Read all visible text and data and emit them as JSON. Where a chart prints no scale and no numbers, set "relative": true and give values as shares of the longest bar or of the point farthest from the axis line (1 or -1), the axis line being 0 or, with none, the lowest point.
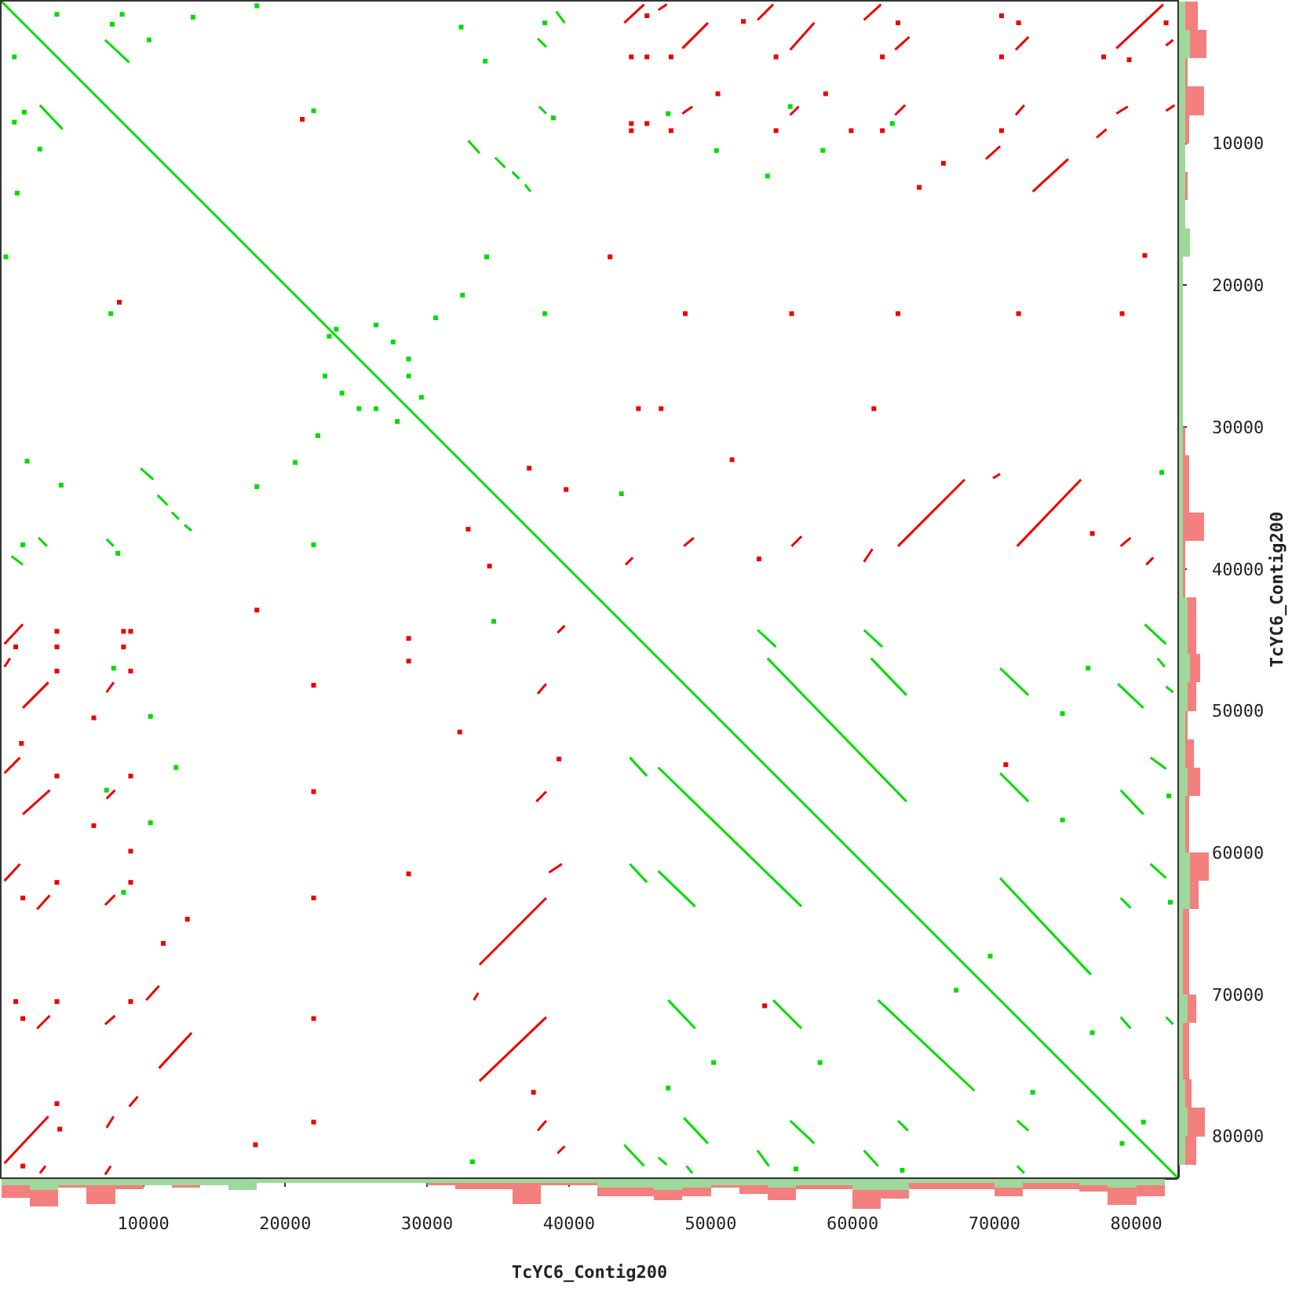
{
  "chart_data": [
    {
      "type": "line",
      "xlim": [
        0,
        82900
      ],
      "ylim": [
        82900,
        0
      ],
      "tick_labels": false,
      "xticks": [
        10000,
        20000,
        30000,
        40000,
        50000,
        60000,
        70000,
        80000
      ],
      "yticks": [
        10000,
        20000,
        30000,
        40000,
        50000,
        60000,
        70000,
        80000
      ],
      "series": [
        {
          "color": "#00dd00",
          "x": [
            0,
            82900
          ],
          "values": [
            0,
            82900
          ]
        },
        {
          "color": "#00dd00",
          "x": [
            700,
            1500,
            null,
            2600,
            3200,
            null,
            7300,
            9000,
            null,
            9800,
            10700,
            null,
            11000,
            11700,
            null,
            12000,
            12500,
            null,
            12900,
            13400,
            null,
            32900,
            33700,
            null,
            34800,
            35500,
            null,
            36000,
            36500,
            null,
            36900,
            37300,
            null,
            37800,
            38400,
            null,
            44300,
            45500,
            null,
            46300,
            56400,
            null,
            60800,
            62100,
            null,
            63200,
            63900,
            null,
            70400,
            72400,
            null,
            78700,
            80500,
            null,
            80600,
            82100
          ],
          "values": [
            39100,
            39700,
            null,
            37800,
            38400,
            null,
            2700,
            4300,
            null,
            32900,
            33700,
            null,
            34800,
            35500,
            null,
            36000,
            36500,
            null,
            36900,
            37300,
            null,
            9800,
            10700,
            null,
            11000,
            11700,
            null,
            12000,
            12500,
            null,
            12900,
            13400,
            null,
            2600,
            3200,
            null,
            53300,
            54600,
            null,
            54000,
            63800,
            null,
            44300,
            45500,
            null,
            78900,
            79600,
            null,
            47000,
            48900,
            null,
            48100,
            49800,
            null,
            43900,
            45300
          ]
        },
        {
          "color": "#00dd00",
          "x": [
            2700,
            4300,
            null,
            7400,
            7900,
            null,
            37900,
            38400,
            null,
            39100,
            39700,
            null,
            43900,
            45300,
            null,
            46300,
            48900,
            null,
            53300,
            54600,
            null,
            55600,
            57300,
            null,
            60800,
            61800,
            null,
            70400,
            72400,
            null,
            78900,
            80500,
            null,
            81000,
            82100
          ],
          "values": [
            7300,
            9000,
            null,
            37900,
            38400,
            null,
            7400,
            7900,
            null,
            700,
            1500,
            null,
            80600,
            82100,
            null,
            61300,
            63800,
            null,
            44300,
            45500,
            null,
            78900,
            80500,
            null,
            81000,
            82100,
            null,
            54400,
            56400,
            null,
            55600,
            57300,
            null,
            53300,
            54100
          ]
        },
        {
          "color": "#00dd00",
          "x": [
            44300,
            45500,
            null,
            46300,
            46900,
            null,
            47000,
            48900,
            null,
            53300,
            54100,
            null,
            54400,
            56400,
            null,
            61300,
            63800,
            null,
            70400,
            76800,
            null,
            78900,
            79600,
            null,
            81000,
            82100
          ],
          "values": [
            60800,
            62100,
            null,
            81500,
            82000,
            null,
            70400,
            72400,
            null,
            81000,
            82100,
            null,
            70400,
            72400,
            null,
            46300,
            48900,
            null,
            61800,
            68600,
            null,
            63200,
            63900,
            null,
            60800,
            61800
          ]
        },
        {
          "color": "#00dd00",
          "x": [
            48100,
            49800,
            null,
            54000,
            63800,
            null,
            71600,
            72400,
            null,
            78900,
            79600,
            null,
            81500,
            82000,
            null,
            82100,
            82600
          ],
          "values": [
            78700,
            80500,
            null,
            46300,
            56400,
            null,
            78900,
            79600,
            null,
            71600,
            72400,
            null,
            46300,
            46900,
            null,
            48300,
            48700
          ]
        },
        {
          "color": "#00dd00",
          "x": [
            48300,
            48700,
            null,
            61800,
            68600,
            null,
            71600,
            72100,
            null,
            82100,
            82600
          ],
          "values": [
            82100,
            82600,
            null,
            70400,
            76800,
            null,
            82100,
            82600,
            null,
            71600,
            72100
          ]
        },
        {
          "type": "scatter",
          "marker": "square",
          "color": "#00dd00",
          "x": [
            3900,
            900,
            8500,
            900,
            13500,
            1100,
            18000,
            300,
            10400,
            2700,
            38300,
            1500,
            32400,
            1800,
            34100,
            4200,
            38900,
            8200,
            22000,
            7700,
            34200,
            18000,
            38300,
            22000,
            23600,
            23100,
            26400,
            22800,
            27600,
            24000,
            30600,
            22300,
            28700,
            25200,
            29600,
            27900,
            47000,
            7900,
            55600,
            7400,
            62800,
            8600,
            50400,
            10500,
            57900,
            10500,
            54000,
            12300,
            43700,
            34700,
            81800,
            33200,
            74800,
            50200,
            74800,
            57700,
            69700,
            67300,
            80500,
            79000,
            7800,
            1600,
            28700,
            26400,
            32500,
            20700,
            76600,
            47000,
            76900,
            72700,
            82400,
            63500,
            82300,
            56000
          ],
          "values": [
            900,
            3900,
            900,
            8500,
            1100,
            13500,
            300,
            18000,
            2700,
            10400,
            1500,
            38300,
            1800,
            32400,
            4200,
            34100,
            8200,
            38900,
            7700,
            22000,
            18000,
            34200,
            22000,
            38300,
            23100,
            23600,
            22800,
            26400,
            24000,
            27600,
            22300,
            30600,
            25200,
            28700,
            27900,
            29600,
            7900,
            47000,
            7400,
            55600,
            8600,
            62800,
            10500,
            50400,
            10500,
            57900,
            12300,
            54000,
            34700,
            43700,
            33200,
            81800,
            50200,
            74800,
            57700,
            74800,
            67300,
            69700,
            79000,
            80500,
            1600,
            7800,
            26400,
            28700,
            20700,
            32500,
            47000,
            76600,
            72700,
            76900,
            63500,
            82400,
            56000,
            82300
          ]
        },
        {
          "color": "#ee0000",
          "x": [
            200,
            1500,
            null,
            2500,
            3400,
            null,
            7300,
            8000,
            null,
            10200,
            11100,
            null,
            33300,
            33600,
            null,
            33700,
            38400,
            null,
            38600,
            39500,
            null,
            43900,
            45300,
            null,
            46300,
            46900,
            null,
            48000,
            49800,
            null,
            53300,
            54400,
            null,
            55600,
            57300,
            null,
            60800,
            62000,
            null,
            63000,
            64000,
            null,
            69400,
            70400,
            null,
            71500,
            72400,
            null,
            72700,
            75200,
            null,
            77200,
            77900,
            null,
            78600,
            81900,
            null,
            82100,
            82600
          ],
          "values": [
            45300,
            43900,
            null,
            64000,
            63000,
            null,
            63700,
            63000,
            null,
            70400,
            69400,
            null,
            70400,
            69900,
            null,
            67900,
            63200,
            null,
            61400,
            60800,
            null,
            1500,
            200,
            null,
            600,
            200,
            null,
            3300,
            1500,
            null,
            1300,
            200,
            null,
            3400,
            1500,
            null,
            1300,
            200,
            null,
            3400,
            2500,
            null,
            11100,
            10200,
            null,
            3400,
            2500,
            null,
            13400,
            11100,
            null,
            9600,
            9000,
            null,
            3300,
            200,
            null,
            3100,
            2700
          ]
        },
        {
          "color": "#ee0000",
          "x": [
            200,
            600,
            null,
            1500,
            3300,
            null,
            7300,
            8000,
            null,
            11100,
            13400,
            null,
            33700,
            38400,
            null,
            39200,
            39700,
            null,
            44000,
            44500,
            null,
            48000,
            48700,
            null,
            55600,
            56200,
            null,
            60800,
            61400,
            null,
            63000,
            63700,
            null,
            69900,
            70400,
            null,
            71500,
            72100,
            null,
            78600,
            79400,
            null,
            80700,
            81200,
            null,
            82100,
            82700
          ],
          "values": [
            46900,
            46300,
            null,
            49800,
            48000,
            null,
            72100,
            71500,
            null,
            75200,
            72700,
            null,
            76100,
            71600,
            null,
            44500,
            44000,
            null,
            39700,
            39200,
            null,
            7900,
            7400,
            null,
            8000,
            7400,
            null,
            39500,
            38600,
            null,
            8000,
            7300,
            null,
            33600,
            33300,
            null,
            8000,
            7300,
            null,
            7900,
            7400,
            null,
            39700,
            39200,
            null,
            7700,
            7300
          ]
        },
        {
          "color": "#ee0000",
          "x": [
            200,
            1300,
            null,
            1500,
            3400,
            null,
            7300,
            7700,
            null,
            37700,
            38400,
            null,
            48100,
            48800,
            null,
            55700,
            56400,
            null,
            63200,
            67900,
            null,
            71600,
            76100,
            null,
            78900,
            79600
          ],
          "values": [
            54400,
            53300,
            null,
            57300,
            55600,
            null,
            82700,
            82100,
            null,
            56400,
            55700,
            null,
            38400,
            37800,
            null,
            38400,
            37700,
            null,
            38400,
            33700,
            null,
            38400,
            33700,
            null,
            38400,
            37800
          ]
        },
        {
          "color": "#ee0000",
          "x": [
            200,
            1300,
            null,
            2500,
            3400,
            null,
            7400,
            7900,
            null,
            37800,
            38400,
            null,
            39200,
            39700
          ],
          "values": [
            62000,
            60800,
            null,
            72400,
            71500,
            null,
            48700,
            48000,
            null,
            48800,
            48100,
            null,
            81200,
            80700
          ]
        },
        {
          "color": "#ee0000",
          "x": [
            200,
            3300,
            null,
            7400,
            8000,
            null,
            37800,
            38400
          ],
          "values": [
            81900,
            78600,
            null,
            56200,
            55600,
            null,
            79600,
            78900
          ]
        },
        {
          "color": "#ee0000",
          "x": [
            2700,
            3100,
            null,
            7400,
            7900,
            null,
            9000,
            9600
          ],
          "values": [
            82600,
            82100,
            null,
            79400,
            78600,
            null,
            77900,
            77200
          ]
        },
        {
          "type": "scatter",
          "marker": "square",
          "color": "#ee0000",
          "x": [
            45500,
            1000,
            44400,
            3900,
            45500,
            3900,
            47200,
            3900,
            52300,
            1400,
            54600,
            3900,
            63200,
            1500,
            62100,
            3900,
            70500,
            1000,
            71700,
            1500,
            70500,
            3900,
            77700,
            3900,
            79500,
            4100,
            82100,
            1500,
            50500,
            6500,
            58100,
            6500,
            44400,
            8600,
            45500,
            8600,
            44400,
            9100,
            47200,
            9100,
            54600,
            9100,
            62100,
            9100,
            70500,
            9100,
            59900,
            9100,
            42900,
            18000,
            80600,
            17900,
            48200,
            22000,
            55700,
            22000,
            63200,
            22000,
            71700,
            22000,
            79000,
            22000,
            44900,
            28700,
            46500,
            28700,
            61500,
            28700,
            51500,
            32300,
            76900,
            37500,
            21200,
            8300,
            37200,
            32900,
            39800,
            34400,
            70800,
            53800,
            64700,
            13100,
            66400,
            11400,
            53400,
            39300
          ],
          "values": [
            1000,
            45500,
            3900,
            44400,
            3900,
            45500,
            3900,
            47200,
            1400,
            52300,
            3900,
            54600,
            1500,
            63200,
            3900,
            62100,
            1000,
            70500,
            1500,
            71700,
            3900,
            70500,
            3900,
            77700,
            4100,
            79500,
            1500,
            82100,
            6500,
            50500,
            6500,
            58100,
            8600,
            44400,
            8600,
            45500,
            9100,
            44400,
            9100,
            47200,
            9100,
            54600,
            9100,
            62100,
            9100,
            70500,
            9100,
            59900,
            18000,
            42900,
            17900,
            80600,
            22000,
            48200,
            22000,
            55700,
            22000,
            63200,
            22000,
            71700,
            22000,
            79000,
            28700,
            44900,
            28700,
            46500,
            28700,
            61500,
            32300,
            51500,
            37500,
            76900,
            8300,
            21200,
            32900,
            37200,
            34400,
            39800,
            53800,
            70800,
            13100,
            64700,
            11400,
            66400,
            39300,
            53400
          ]
        }
      ]
    },
    {
      "type": "bar",
      "relative": true,
      "stacked": true,
      "xlabel": "TcYC6_Contig200",
      "xlim": [
        0,
        82900
      ],
      "xticks": [
        10000,
        20000,
        30000,
        40000,
        50000,
        60000,
        70000,
        80000
      ],
      "tick_labels": "x",
      "x": [
        1000,
        3000,
        5000,
        7000,
        9000,
        11000,
        13000,
        15000,
        17000,
        19000,
        21000,
        23000,
        25000,
        27000,
        29000,
        31000,
        33000,
        35000,
        37000,
        39000,
        41000,
        43000,
        45000,
        47000,
        49000,
        51000,
        53000,
        55000,
        57000,
        59000,
        61000,
        63000,
        65000,
        67000,
        69000,
        71000,
        73000,
        75000,
        77000,
        79000,
        81000
      ],
      "series": [
        {
          "color": "#9ed89a",
          "values": [
            -0.21,
            -0.36,
            -0.21,
            -0.21,
            -0.21,
            -0.21,
            -0.21,
            -0.21,
            -0.36,
            -0.14,
            -0.14,
            -0.14,
            -0.14,
            -0.14,
            -0.14,
            -0.14,
            -0.14,
            -0.14,
            -0.14,
            -0.14,
            -0.14,
            -0.29,
            -0.29,
            -0.36,
            -0.29,
            -0.21,
            -0.21,
            -0.29,
            -0.21,
            -0.21,
            -0.36,
            -0.36,
            -0.14,
            -0.14,
            -0.14,
            -0.29,
            -0.14,
            -0.14,
            -0.21,
            -0.29,
            -0.21
          ]
        },
        {
          "color": "#f47f7f",
          "values": [
            -0.43,
            -0.57,
            -0.07,
            -0.64,
            -0.14,
            0,
            -0.07,
            0,
            0,
            0,
            0,
            0,
            0,
            0,
            0,
            -0.07,
            -0.21,
            -0.21,
            -0.71,
            -0.07,
            -0.07,
            -0.29,
            -0.29,
            -0.36,
            -0.29,
            -0.07,
            -0.29,
            -0.43,
            -0.14,
            -0.14,
            -0.64,
            -0.29,
            -0.21,
            -0.21,
            -0.21,
            -0.29,
            -0.21,
            -0.21,
            -0.21,
            -0.57,
            -0.36
          ]
        }
      ]
    },
    {
      "type": "bar",
      "orientation": "horizontal",
      "relative": true,
      "stacked": true,
      "ylabel": "TcYC6_Contig200",
      "ylim": [
        82900,
        0
      ],
      "yticks": [
        10000,
        20000,
        30000,
        40000,
        50000,
        60000,
        70000,
        80000
      ],
      "tick_labels": "y",
      "x": [
        1000,
        3000,
        5000,
        7000,
        9000,
        11000,
        13000,
        15000,
        17000,
        19000,
        21000,
        23000,
        25000,
        27000,
        29000,
        31000,
        33000,
        35000,
        37000,
        39000,
        41000,
        43000,
        45000,
        47000,
        49000,
        51000,
        53000,
        55000,
        57000,
        59000,
        61000,
        63000,
        65000,
        67000,
        69000,
        71000,
        73000,
        75000,
        77000,
        79000,
        81000
      ],
      "series": [
        {
          "color": "#9ed89a",
          "values": [
            0.21,
            0.36,
            0.21,
            0.21,
            0.21,
            0.21,
            0.21,
            0.21,
            0.36,
            0.14,
            0.14,
            0.14,
            0.14,
            0.14,
            0.14,
            0.14,
            0.14,
            0.14,
            0.14,
            0.14,
            0.14,
            0.29,
            0.29,
            0.36,
            0.29,
            0.21,
            0.21,
            0.29,
            0.21,
            0.21,
            0.36,
            0.36,
            0.14,
            0.14,
            0.14,
            0.29,
            0.14,
            0.14,
            0.21,
            0.29,
            0.21
          ]
        },
        {
          "color": "#f47f7f",
          "values": [
            0.43,
            0.57,
            0.07,
            0.64,
            0.14,
            0,
            0.07,
            0,
            0,
            0,
            0,
            0,
            0,
            0,
            0,
            0.07,
            0.21,
            0.21,
            0.71,
            0.07,
            0.07,
            0.29,
            0.29,
            0.36,
            0.29,
            0.07,
            0.29,
            0.43,
            0.14,
            0.14,
            0.64,
            0.29,
            0.21,
            0.21,
            0.21,
            0.29,
            0.21,
            0.21,
            0.21,
            0.57,
            0.36
          ]
        }
      ]
    }
  ]
}
